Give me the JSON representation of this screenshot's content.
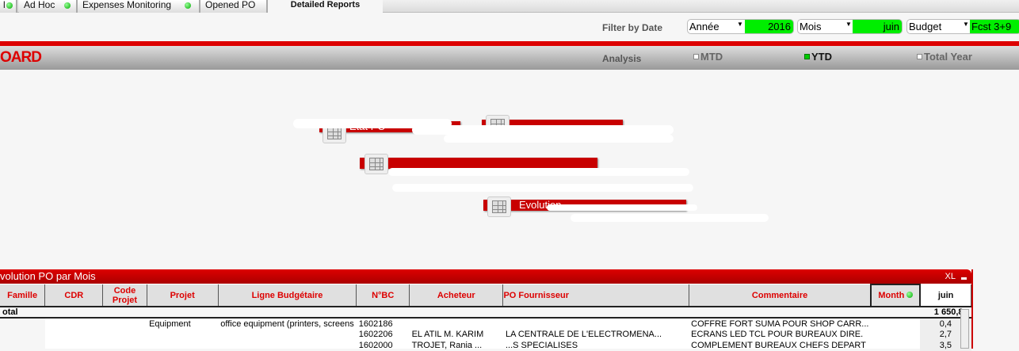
{
  "tabs": [
    {
      "label": "l",
      "dot": true
    },
    {
      "label": "Ad Hoc",
      "dot": true
    },
    {
      "label": "Expenses Monitoring",
      "dot": true
    },
    {
      "label": "Opened PO",
      "dot": false
    },
    {
      "label": "Detailed Reports",
      "active": true
    }
  ],
  "filter": {
    "label": "Filter by Date",
    "year": {
      "label": "Année",
      "value": "2016"
    },
    "month": {
      "label": "Mois",
      "value": "juin"
    },
    "budget": {
      "label": "Budget",
      "value": "Fcst 3+9"
    }
  },
  "header": {
    "title": "OARD",
    "analysis_label": "Analysis",
    "options": [
      {
        "label": "MTD",
        "selected": false
      },
      {
        "label": "YTD",
        "selected": true
      },
      {
        "label": "Total Year",
        "selected": false
      }
    ]
  },
  "buttons": [
    {
      "label": "Etat PO"
    },
    {
      "label": ""
    },
    {
      "label": ""
    },
    {
      "label": "Evolution"
    }
  ],
  "panel": {
    "title": "volution PO par Mois",
    "xl": "XL",
    "columns": [
      "Famille",
      "CDR",
      "Code Projet",
      "Projet",
      "Ligne Budgétaire",
      "N°BC",
      "Acheteur",
      "PO Fournisseur",
      "Commentaire",
      "Month",
      "juin"
    ],
    "total_label": "otal",
    "total_value": "1 650,8",
    "rows": [
      {
        "code": "",
        "projet": "Equipment",
        "ligne": "office equipment (printers, screens",
        "nbc": "1602186",
        "acheteur": "",
        "fournisseur": "",
        "commentaire": "COFFRE FORT SUMA POUR SHOP CARR...",
        "value": "0,4"
      },
      {
        "code": "",
        "projet": "",
        "ligne": "",
        "nbc": "1602206",
        "acheteur": "EL ATIL M. KARIM",
        "fournisseur": "LA CENTRALE DE L'ELECTROMENA...",
        "commentaire": "ECRANS LED TCL POUR BUREAUX DIRE.",
        "value": "2,7"
      },
      {
        "code": "",
        "projet": "",
        "ligne": "",
        "nbc": "1602000",
        "acheteur": "TROJET, Rania ...",
        "fournisseur": "...S SPECIALISES",
        "commentaire": "COMPLEMENT BUREAUX CHEFS DEPART",
        "value": "3,5"
      }
    ]
  },
  "colors": {
    "accent": "#cc0000",
    "selected": "#00ee00"
  }
}
